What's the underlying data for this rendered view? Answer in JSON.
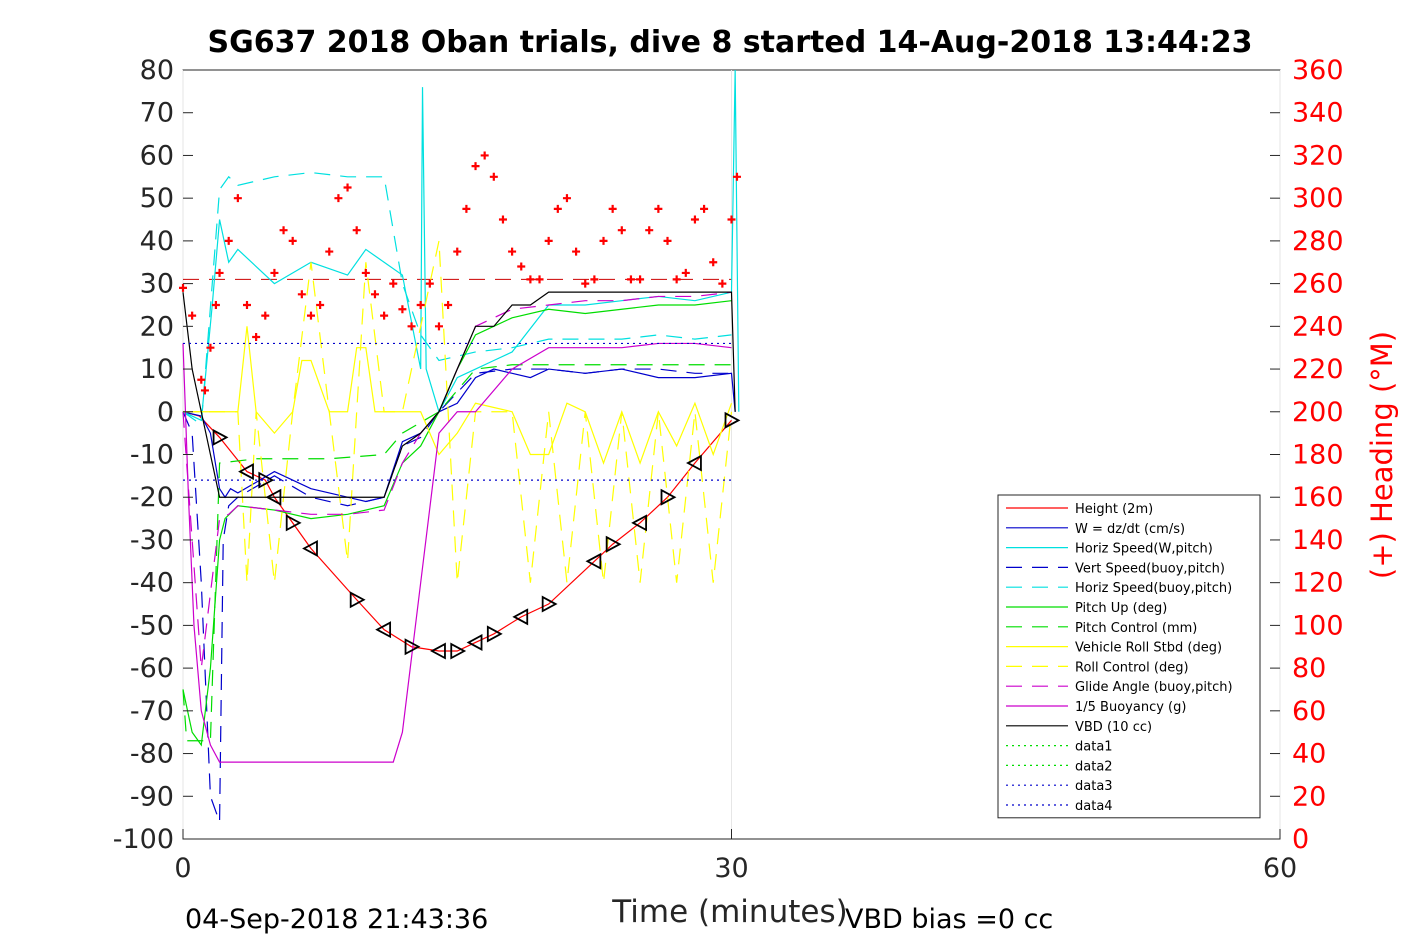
{
  "chart_data": {
    "type": "line",
    "title": "SG637 2018 Oban trials, dive 8 started 14-Aug-2018 13:44:23",
    "xlabel": "Time (minutes)",
    "ylabel_right": "(+) Heading (°M)",
    "xlim": [
      0,
      60
    ],
    "ylim": [
      -100,
      80
    ],
    "ylim_right": [
      0,
      360
    ],
    "x_ticks": [
      "0",
      "30",
      "60"
    ],
    "y_ticks": [
      "80",
      "70",
      "60",
      "50",
      "40",
      "30",
      "20",
      "10",
      "0",
      "-10",
      "-20",
      "-30",
      "-40",
      "-50",
      "-60",
      "-70",
      "-80",
      "-90",
      "-100"
    ],
    "y_right_ticks": [
      "360",
      "340",
      "320",
      "300",
      "280",
      "260",
      "240",
      "220",
      "200",
      "180",
      "160",
      "140",
      "120",
      "100",
      "80",
      "60",
      "40",
      "20",
      "0"
    ],
    "grid": true,
    "legend_position": "bottom-right",
    "footer_left": "04-Sep-2018 21:43:36",
    "footer_right": "VBD bias =0 cc",
    "series": [
      {
        "name": "Height (2m)",
        "color": "#ff0000",
        "style": "solid",
        "x": [
          0,
          0.9,
          2,
          3.5,
          4.5,
          5,
          6,
          7,
          9.5,
          11,
          12.5,
          14,
          15,
          16,
          17,
          18.5,
          20,
          22.5,
          23.5,
          25,
          26.5,
          28,
          30
        ],
        "y": [
          0,
          -1,
          -6,
          -14,
          -16,
          -20,
          -26,
          -32,
          -44,
          -51,
          -55,
          -56,
          -56,
          -54,
          -52,
          -48,
          -45,
          -35,
          -31,
          -26,
          -20,
          -12,
          -2
        ]
      },
      {
        "name": "W = dz/dt (cm/s)",
        "color": "#0000cc",
        "style": "solid",
        "x": [
          0,
          1,
          1.5,
          2,
          2.3,
          2.6,
          3,
          5,
          7,
          9,
          10,
          11,
          12,
          13,
          14,
          15,
          16,
          17,
          18,
          19,
          20,
          22,
          24,
          26,
          28,
          30,
          30.2
        ],
        "y": [
          0,
          -1,
          -5,
          -18,
          -20,
          -18,
          -19,
          -14,
          -18,
          -20,
          -21,
          -20,
          -7,
          -5,
          0,
          2,
          8,
          10,
          9,
          8,
          10,
          9,
          10,
          8,
          8,
          9,
          0
        ]
      },
      {
        "name": "Horiz Speed(W,pitch)",
        "color": "#00e0e0",
        "style": "solid",
        "x": [
          0,
          1,
          1.6,
          2,
          2.5,
          3,
          5,
          7,
          9,
          10,
          11,
          12,
          13,
          13.1,
          13.3,
          14,
          15,
          16,
          17,
          18,
          20,
          22,
          24,
          26,
          28,
          30,
          30.2,
          30.4
        ],
        "y": [
          0,
          -2,
          25,
          45,
          35,
          38,
          30,
          35,
          32,
          38,
          35,
          32,
          10,
          76,
          10,
          0,
          8,
          10,
          12,
          14,
          25,
          25,
          26,
          27,
          26,
          28,
          80,
          0
        ]
      },
      {
        "name": "Vert Speed(buoy,pitch)",
        "color": "#0000cc",
        "style": "dashed",
        "x": [
          0,
          0.5,
          1,
          1.5,
          2,
          2.2,
          2.5,
          3,
          5,
          7,
          9,
          11,
          12,
          13,
          14,
          16,
          18,
          20,
          22,
          24,
          26,
          28,
          30
        ],
        "y": [
          0,
          -5,
          -40,
          -90,
          -96,
          -30,
          -22,
          -20,
          -15,
          -20,
          -22,
          -20,
          -8,
          -6,
          0,
          9,
          10,
          10,
          9,
          10,
          10,
          9,
          9
        ]
      },
      {
        "name": "Horiz Speed(buoy,pitch)",
        "color": "#00e0e0",
        "style": "dashed",
        "x": [
          0,
          1,
          2,
          2.5,
          3,
          5,
          7,
          9,
          11,
          12,
          13,
          14,
          16,
          18,
          20,
          22,
          24,
          26,
          28,
          30
        ],
        "y": [
          0,
          -3,
          52,
          55,
          53,
          55,
          56,
          55,
          55,
          30,
          18,
          12,
          14,
          15,
          17,
          17,
          17,
          18,
          17,
          18
        ]
      },
      {
        "name": "Pitch Up (deg)",
        "color": "#00dd00",
        "style": "solid",
        "x": [
          0,
          0.5,
          1,
          1.5,
          2,
          2.3,
          3,
          5,
          7,
          9,
          11,
          12,
          13,
          14,
          15,
          16,
          17,
          18,
          20,
          22,
          24,
          26,
          28,
          30
        ],
        "y": [
          -65,
          -75,
          -78,
          -60,
          -30,
          -25,
          -22,
          -23,
          -25,
          -24,
          -22,
          -12,
          -8,
          0,
          10,
          18,
          20,
          22,
          24,
          23,
          24,
          25,
          25,
          26
        ]
      },
      {
        "name": "Pitch Control (mm)",
        "color": "#00dd00",
        "style": "dashed",
        "x": [
          0,
          0.2,
          0.3,
          1.5,
          2,
          4,
          8,
          11,
          12,
          14,
          16,
          18,
          20,
          22,
          24,
          26,
          28,
          30
        ],
        "y": [
          -65,
          -77,
          -77,
          -77,
          -12,
          -11,
          -11,
          -10,
          -5,
          0,
          10,
          11,
          11,
          11,
          11,
          11,
          11,
          11
        ]
      },
      {
        "name": "Vehicle Roll Stbd (deg)",
        "color": "#ffff00",
        "style": "solid",
        "x": [
          0,
          2,
          3,
          3.5,
          4,
          5,
          6,
          6.5,
          7,
          8,
          9,
          9.5,
          10,
          10.5,
          11,
          12,
          13,
          14,
          15,
          16,
          18,
          19,
          20,
          21,
          22,
          23,
          24,
          25,
          26,
          27,
          28,
          29,
          30
        ],
        "y": [
          0,
          0,
          0,
          20,
          0,
          -5,
          0,
          12,
          12,
          0,
          0,
          15,
          15,
          0,
          0,
          0,
          0,
          -10,
          -5,
          2,
          0,
          -10,
          -10,
          2,
          0,
          -12,
          0,
          -12,
          0,
          -8,
          2,
          -10,
          2
        ]
      },
      {
        "name": "Roll Control (deg)",
        "color": "#ffff00",
        "style": "dashed",
        "x": [
          0,
          2,
          3,
          3.5,
          4,
          5,
          6,
          7,
          8,
          9,
          10,
          11,
          12,
          14,
          15,
          16,
          18,
          19,
          20,
          21,
          22,
          23,
          24,
          25,
          26,
          27,
          28,
          29,
          30
        ],
        "y": [
          0,
          0,
          0,
          -40,
          0,
          -40,
          0,
          35,
          0,
          -35,
          35,
          0,
          0,
          40,
          -40,
          0,
          0,
          -40,
          0,
          -40,
          0,
          -40,
          0,
          -40,
          0,
          -40,
          0,
          -40,
          0
        ]
      },
      {
        "name": "Glide Angle (buoy,pitch)",
        "color": "#cc00cc",
        "style": "dashed",
        "x": [
          0,
          0.5,
          1,
          2,
          2.5,
          3,
          5,
          7,
          9,
          11,
          12,
          13,
          14,
          16,
          18,
          20,
          22,
          24,
          26,
          28,
          30
        ],
        "y": [
          0,
          -30,
          -60,
          -25,
          -24,
          -22,
          -23,
          -24,
          -24,
          -23,
          -12,
          -5,
          0,
          20,
          24,
          25,
          26,
          26,
          27,
          27,
          28
        ]
      },
      {
        "name": "1/5 Buoyancy (g)",
        "color": "#cc00cc",
        "style": "solid",
        "x": [
          0,
          0.3,
          0.6,
          1,
          1.5,
          2,
          3,
          5,
          7,
          9,
          10,
          11,
          11.5,
          12,
          13,
          14,
          15,
          16,
          18,
          20,
          22,
          24,
          26,
          28,
          30
        ],
        "y": [
          16,
          -20,
          -50,
          -70,
          -78,
          -82,
          -82,
          -82,
          -82,
          -82,
          -82,
          -82,
          -82,
          -75,
          -40,
          -5,
          0,
          0,
          10,
          15,
          15,
          15,
          16,
          16,
          15
        ]
      },
      {
        "name": "VBD (10 cc)",
        "color": "#000000",
        "style": "solid",
        "x": [
          0,
          0.5,
          1.5,
          2,
          3,
          11,
          12,
          13,
          14,
          15,
          16,
          17,
          18,
          19,
          20,
          30,
          30.2
        ],
        "y": [
          28,
          10,
          -10,
          -20,
          -20,
          -20,
          -8,
          -5,
          0,
          10,
          20,
          20,
          25,
          25,
          28,
          28,
          0
        ]
      },
      {
        "name": "data1",
        "color": "#00dd00",
        "style": "dotted",
        "x": [],
        "y": []
      },
      {
        "name": "data2",
        "color": "#00dd00",
        "style": "dotted",
        "x": [],
        "y": []
      },
      {
        "name": "data3",
        "color": "#0000cc",
        "style": "dotted",
        "x": [
          0,
          30
        ],
        "y": [
          16,
          16
        ]
      },
      {
        "name": "data4",
        "color": "#0000cc",
        "style": "dotted",
        "x": [
          0,
          30
        ],
        "y": [
          -16,
          -16
        ]
      }
    ],
    "reference_line": {
      "color": "#cc0000",
      "style": "dashed",
      "x": [
        0,
        30
      ],
      "y": [
        31,
        31
      ]
    },
    "heading_series": {
      "color": "#ff0000",
      "marker": "plus",
      "x": [
        0,
        0.5,
        1,
        1.2,
        1.5,
        1.8,
        2,
        2.5,
        3,
        3.5,
        4,
        4.5,
        5,
        5.5,
        6,
        6.5,
        7,
        7.5,
        8,
        8.5,
        9,
        9.5,
        10,
        10.5,
        11,
        11.5,
        12,
        12.5,
        13,
        13.5,
        14,
        14.5,
        15,
        15.5,
        16,
        16.5,
        17,
        17.5,
        18,
        18.5,
        19,
        19.5,
        20,
        20.5,
        21,
        21.5,
        22,
        22.5,
        23,
        23.5,
        24,
        24.5,
        25,
        25.5,
        26,
        26.5,
        27,
        27.5,
        28,
        28.5,
        29,
        29.5,
        30,
        30.3
      ],
      "y": [
        258,
        245,
        215,
        210,
        230,
        250,
        265,
        280,
        300,
        250,
        235,
        245,
        265,
        285,
        280,
        255,
        245,
        250,
        275,
        300,
        305,
        285,
        265,
        255,
        245,
        260,
        248,
        240,
        250,
        260,
        240,
        250,
        275,
        295,
        315,
        320,
        310,
        290,
        275,
        268,
        262,
        262,
        280,
        295,
        300,
        275,
        260,
        262,
        280,
        295,
        285,
        262,
        262,
        285,
        295,
        280,
        262,
        265,
        290,
        295,
        270,
        260,
        290,
        310
      ]
    },
    "heading_markers": {
      "color": "#000000",
      "marker": "triangle",
      "x": [
        2,
        3.5,
        4.5,
        5,
        6,
        7,
        9.5,
        11,
        12.5,
        14,
        15,
        16,
        17,
        18.5,
        20,
        22.5,
        23.5,
        25,
        26.5,
        28,
        30
      ],
      "y": [
        -6,
        -14,
        -16,
        -20,
        -26,
        -32,
        -44,
        -51,
        -55,
        -56,
        -56,
        -54,
        -52,
        -48,
        -45,
        -35,
        -31,
        -26,
        -20,
        -12,
        -2
      ]
    }
  }
}
